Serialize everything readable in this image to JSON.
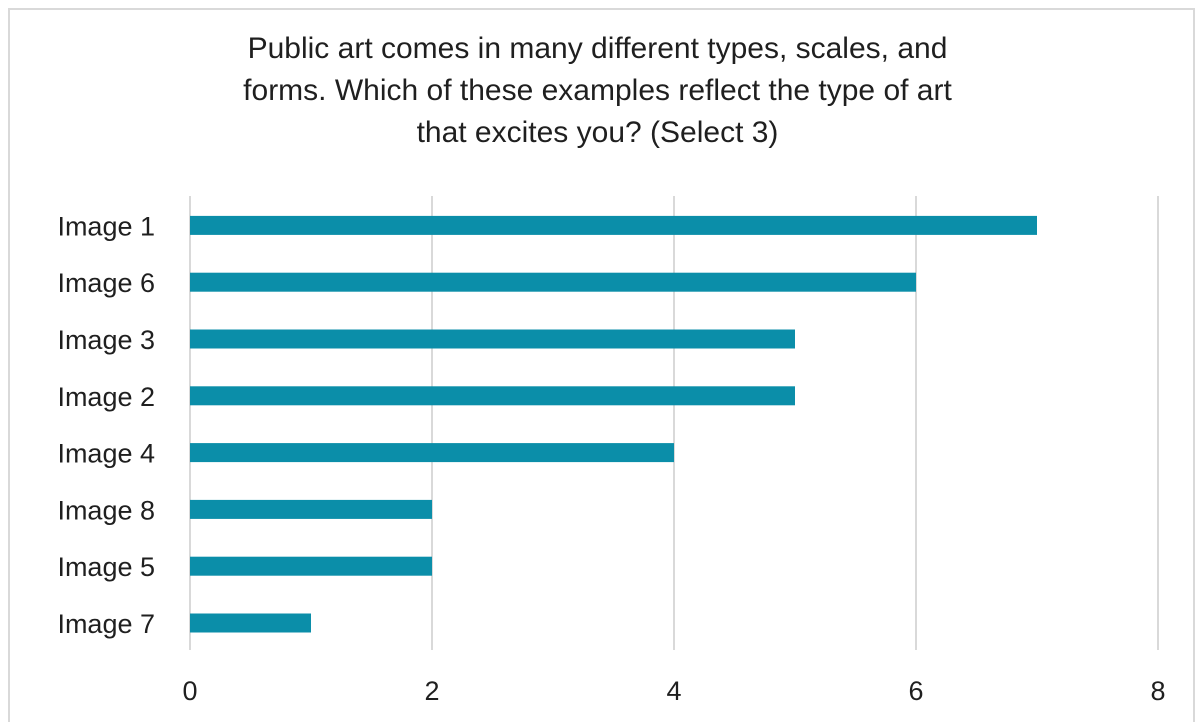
{
  "chart_data": {
    "type": "bar",
    "orientation": "horizontal",
    "title_lines": [
      "Public art comes in many different types, scales, and",
      "forms. Which of these examples reflect the type of art",
      "that excites you? (Select 3)"
    ],
    "categories": [
      "Image 1",
      "Image 6",
      "Image 3",
      "Image 2",
      "Image 4",
      "Image 8",
      "Image 5",
      "Image 7"
    ],
    "values": [
      7,
      6,
      5,
      5,
      4,
      2,
      2,
      1
    ],
    "xlim": [
      0,
      8
    ],
    "xticks": [
      "0",
      "2",
      "4",
      "6",
      "8"
    ],
    "xlabel": "",
    "ylabel": "",
    "grid": "vertical",
    "legend": "none",
    "bar_color": "#0b8ea9",
    "grid_color": "#d9d9d9"
  }
}
